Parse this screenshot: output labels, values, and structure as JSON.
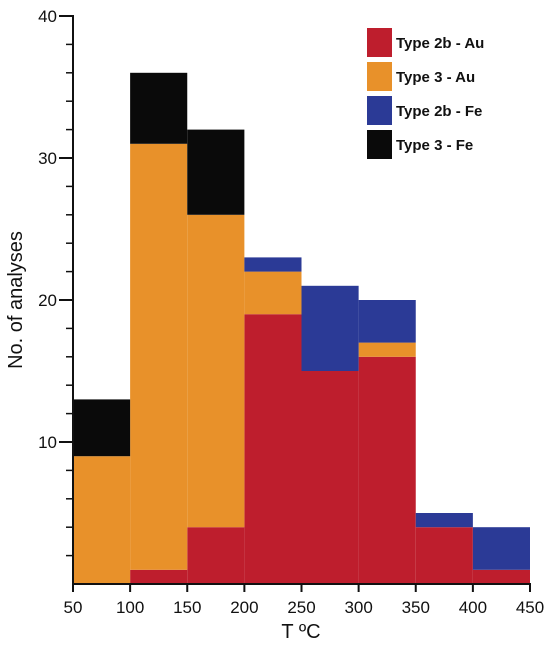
{
  "chart_data": {
    "type": "bar",
    "stacked": true,
    "bin_edges": [
      50,
      100,
      150,
      200,
      250,
      300,
      350,
      400,
      450
    ],
    "xlabel": "T ºC",
    "ylabel": "No. of analyses",
    "xlim": [
      50,
      450
    ],
    "ylim": [
      0,
      40
    ],
    "x_ticks": [
      50,
      100,
      150,
      200,
      250,
      300,
      350,
      400,
      450
    ],
    "y_ticks": [
      10,
      20,
      30,
      40
    ],
    "y_minor_step": 2,
    "grid": false,
    "legend_position": "top-right",
    "series": [
      {
        "name": "Type 2b - Au",
        "color": "#be1e2d",
        "values": [
          0,
          1,
          4,
          19,
          15,
          16,
          4,
          1
        ]
      },
      {
        "name": "Type 3 - Au",
        "color": "#e8912a",
        "values": [
          9,
          30,
          22,
          3,
          0,
          1,
          0,
          0
        ]
      },
      {
        "name": "Type 2b - Fe",
        "color": "#2b3a96",
        "values": [
          0,
          0,
          0,
          1,
          6,
          3,
          1,
          3
        ]
      },
      {
        "name": "Type 3 - Fe",
        "color": "#0a0a0a",
        "values": [
          4,
          5,
          6,
          0,
          0,
          0,
          0,
          0
        ]
      }
    ]
  }
}
